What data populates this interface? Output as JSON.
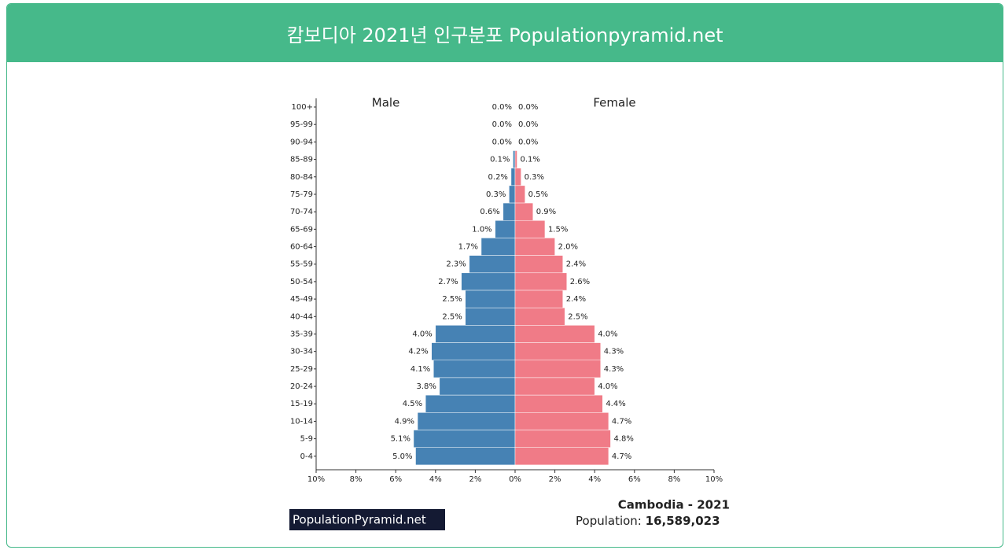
{
  "header": {
    "title": "캄보디아 2021년 인구분포 Populationpyramid.net"
  },
  "chart_data": {
    "type": "pyramid",
    "categories": [
      "100+",
      "95-99",
      "90-94",
      "85-89",
      "80-84",
      "75-79",
      "70-74",
      "65-69",
      "60-64",
      "55-59",
      "50-54",
      "45-49",
      "40-44",
      "35-39",
      "30-34",
      "25-29",
      "20-24",
      "15-19",
      "10-14",
      "5-9",
      "0-4"
    ],
    "series": [
      {
        "name": "Male",
        "color": "#4682b4",
        "values": [
          0,
          0,
          0,
          -0.1,
          -0.2,
          -0.3,
          -0.6,
          -1.0,
          -1.7,
          -2.3,
          -2.7,
          -2.5,
          -2.5,
          -4.0,
          -4.2,
          -4.1,
          -3.8,
          -4.5,
          -4.9,
          -5.1,
          -5.0
        ],
        "value_labels": [
          "0.0%",
          "0.0%",
          "0.0%",
          "0.1%",
          "0.2%",
          "0.3%",
          "0.6%",
          "1.0%",
          "1.7%",
          "2.3%",
          "2.7%",
          "2.5%",
          "2.5%",
          "4.0%",
          "4.2%",
          "4.1%",
          "3.8%",
          "4.5%",
          "4.9%",
          "5.1%",
          "5.0%"
        ]
      },
      {
        "name": "Female",
        "color": "#f07b87",
        "values": [
          0,
          0,
          0,
          0.1,
          0.3,
          0.5,
          0.9,
          1.5,
          2.0,
          2.4,
          2.6,
          2.4,
          2.5,
          4.0,
          4.3,
          4.3,
          4.0,
          4.4,
          4.7,
          4.8,
          4.7
        ],
        "value_labels": [
          "0.0%",
          "0.0%",
          "0.0%",
          "0.1%",
          "0.3%",
          "0.5%",
          "0.9%",
          "1.5%",
          "2.0%",
          "2.4%",
          "2.6%",
          "2.4%",
          "2.5%",
          "4.0%",
          "4.3%",
          "4.3%",
          "4.0%",
          "4.4%",
          "4.7%",
          "4.8%",
          "4.7%"
        ]
      }
    ],
    "xlim": [
      -10,
      10
    ],
    "xticks": [
      {
        "value": -10,
        "label": "10%"
      },
      {
        "value": -8,
        "label": "8%"
      },
      {
        "value": -6,
        "label": "6%"
      },
      {
        "value": -4,
        "label": "4%"
      },
      {
        "value": -2,
        "label": "2%"
      },
      {
        "value": 0,
        "label": "0%"
      },
      {
        "value": 2,
        "label": "2%"
      },
      {
        "value": 4,
        "label": "4%"
      },
      {
        "value": 6,
        "label": "6%"
      },
      {
        "value": 8,
        "label": "8%"
      },
      {
        "value": 10,
        "label": "10%"
      }
    ]
  },
  "footer": {
    "brand": "PopulationPyramid.net",
    "title": "Cambodia - 2021",
    "population_label": "Population:",
    "population": "16,589,023"
  }
}
